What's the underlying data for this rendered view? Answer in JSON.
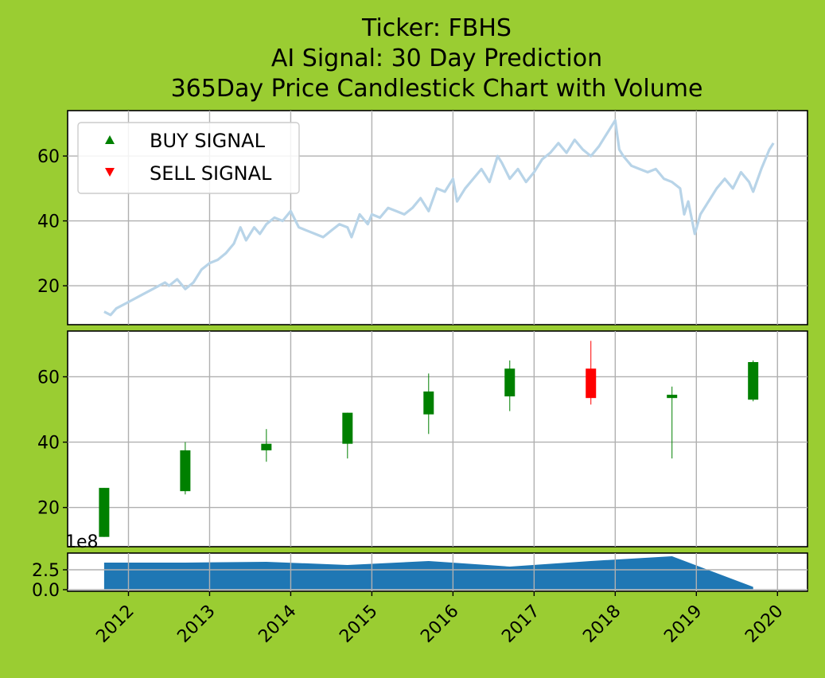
{
  "chart_data": {
    "title_lines": [
      "Ticker: FBHS",
      "AI Signal: 30 Day Prediction",
      "365Day Price Candlestick Chart with Volume"
    ],
    "x_ticks": [
      "2012",
      "2013",
      "2014",
      "2015",
      "2016",
      "2017",
      "2018",
      "2019",
      "2020"
    ],
    "x_range": [
      2011.25,
      2020.37
    ],
    "colors": {
      "background": "#9acd32",
      "price_line": "#b8d4e8",
      "up_candle": "#008000",
      "down_candle": "#ff0000",
      "volume_fill": "#1f77b4",
      "buy_marker": "#008000",
      "sell_marker": "#ff0000"
    },
    "panels": [
      {
        "type": "line",
        "ylim": [
          8,
          74
        ],
        "y_ticks": [
          20,
          40,
          60
        ],
        "legend": {
          "position": "upper-left",
          "entries": [
            {
              "label": "BUY SIGNAL",
              "marker": "triangle-up",
              "color": "#008000"
            },
            {
              "label": "SELL SIGNAL",
              "marker": "triangle-down",
              "color": "#ff0000"
            }
          ]
        },
        "series": {
          "x": [
            2011.7,
            2011.78,
            2011.85,
            2012.0,
            2012.15,
            2012.3,
            2012.45,
            2012.5,
            2012.6,
            2012.7,
            2012.8,
            2012.9,
            2013.0,
            2013.1,
            2013.2,
            2013.3,
            2013.38,
            2013.45,
            2013.55,
            2013.62,
            2013.7,
            2013.8,
            2013.9,
            2014.0,
            2014.1,
            2014.2,
            2014.3,
            2014.4,
            2014.5,
            2014.6,
            2014.7,
            2014.75,
            2014.85,
            2014.95,
            2015.0,
            2015.1,
            2015.2,
            2015.3,
            2015.4,
            2015.5,
            2015.6,
            2015.7,
            2015.8,
            2015.9,
            2016.0,
            2016.05,
            2016.15,
            2016.25,
            2016.35,
            2016.45,
            2016.55,
            2016.6,
            2016.7,
            2016.8,
            2016.9,
            2017.0,
            2017.1,
            2017.2,
            2017.3,
            2017.4,
            2017.5,
            2017.6,
            2017.7,
            2017.8,
            2017.9,
            2018.0,
            2018.05,
            2018.1,
            2018.2,
            2018.3,
            2018.4,
            2018.5,
            2018.6,
            2018.7,
            2018.8,
            2018.85,
            2018.9,
            2018.98,
            2019.05,
            2019.15,
            2019.25,
            2019.35,
            2019.45,
            2019.55,
            2019.65,
            2019.7,
            2019.8,
            2019.9,
            2019.95
          ],
          "y": [
            12,
            11,
            13,
            15,
            17,
            19,
            21,
            20,
            22,
            19,
            21,
            25,
            27,
            28,
            30,
            33,
            38,
            34,
            38,
            36,
            39,
            41,
            40,
            43,
            38,
            37,
            36,
            35,
            37,
            39,
            38,
            35,
            42,
            39,
            42,
            41,
            44,
            43,
            42,
            44,
            47,
            43,
            50,
            49,
            53,
            46,
            50,
            53,
            56,
            52,
            60,
            58,
            53,
            56,
            52,
            55,
            59,
            61,
            64,
            61,
            65,
            62,
            60,
            63,
            67,
            71,
            62,
            60,
            57,
            56,
            55,
            56,
            53,
            52,
            50,
            42,
            46,
            36,
            42,
            46,
            50,
            53,
            50,
            55,
            52,
            49,
            56,
            62,
            64
          ]
        }
      },
      {
        "type": "candlestick",
        "ylim": [
          8,
          74
        ],
        "y_ticks": [
          20,
          40,
          60
        ],
        "candles": [
          {
            "x": 2011.7,
            "open": 11,
            "high": 26,
            "low": 11,
            "close": 26,
            "direction": "up"
          },
          {
            "x": 2012.7,
            "open": 25,
            "high": 40,
            "low": 24,
            "close": 37.5,
            "direction": "up"
          },
          {
            "x": 2013.7,
            "open": 37.5,
            "high": 44,
            "low": 34,
            "close": 39.5,
            "direction": "up"
          },
          {
            "x": 2014.7,
            "open": 39.5,
            "high": 49,
            "low": 35,
            "close": 49,
            "direction": "up"
          },
          {
            "x": 2015.7,
            "open": 48.5,
            "high": 61,
            "low": 42.5,
            "close": 55.5,
            "direction": "up"
          },
          {
            "x": 2016.7,
            "open": 54,
            "high": 65,
            "low": 49.5,
            "close": 62.5,
            "direction": "up"
          },
          {
            "x": 2017.7,
            "open": 62.5,
            "high": 71,
            "low": 51.5,
            "close": 53.5,
            "direction": "down"
          },
          {
            "x": 2018.7,
            "open": 53.5,
            "high": 57,
            "low": 35,
            "close": 54.5,
            "direction": "up"
          },
          {
            "x": 2019.7,
            "open": 53,
            "high": 65,
            "low": 52.5,
            "close": 64.5,
            "direction": "up"
          }
        ]
      },
      {
        "type": "area",
        "ylim": [
          -0.2,
          4.6
        ],
        "y_ticks": [
          0.0,
          2.5
        ],
        "y_tick_labels": [
          "0.0",
          "2.5"
        ],
        "offset_text": "1e8",
        "series": {
          "x": [
            2011.7,
            2012.7,
            2013.7,
            2014.7,
            2015.7,
            2016.7,
            2017.7,
            2018.7,
            2019.7
          ],
          "y": [
            3.4,
            3.4,
            3.5,
            3.1,
            3.6,
            2.9,
            3.6,
            4.2,
            0.35
          ]
        }
      }
    ]
  }
}
